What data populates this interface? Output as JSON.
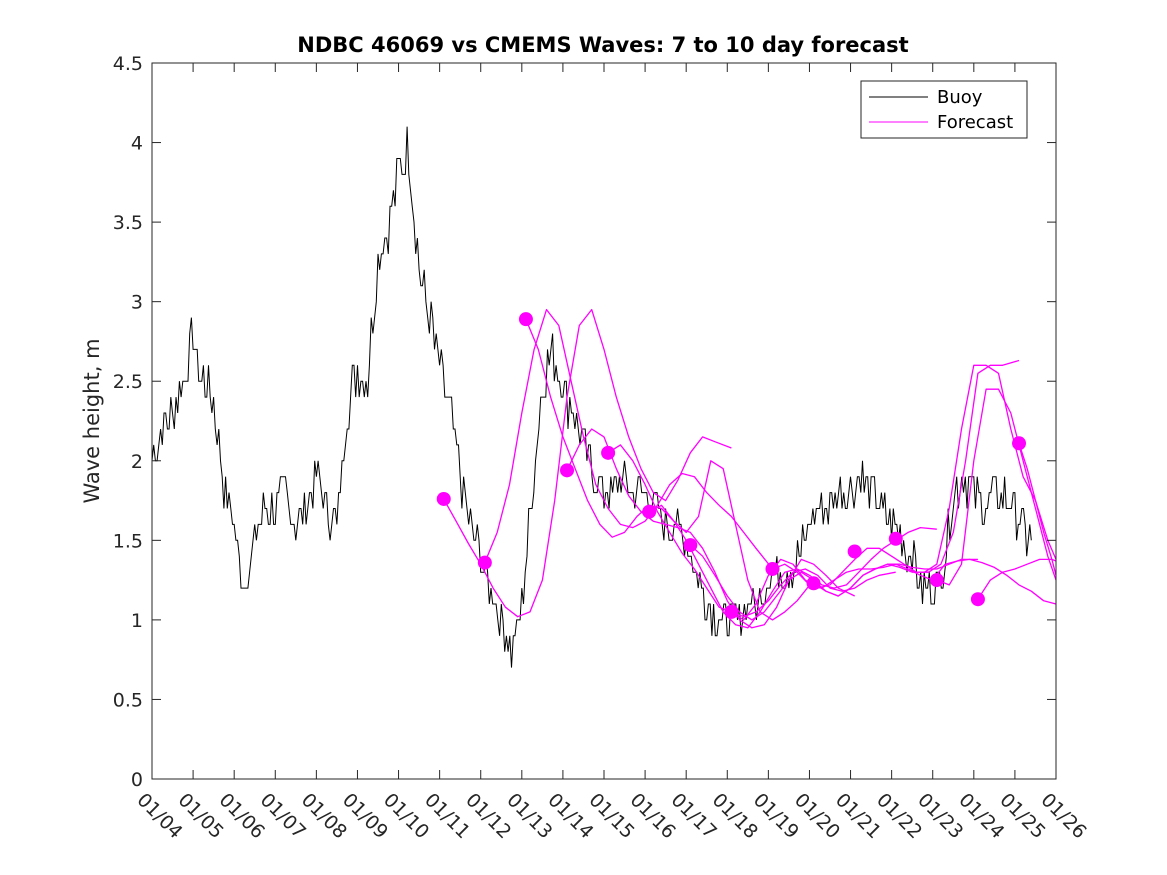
{
  "chart_data": {
    "type": "line",
    "title": "NDBC 46069 vs CMEMS Waves: 7 to 10 day forecast",
    "xlabel": "",
    "ylabel": "Wave height, m",
    "xlim": [
      0,
      22
    ],
    "ylim": [
      0,
      4.5
    ],
    "x_tick_labels": [
      "01/04",
      "01/05",
      "01/06",
      "01/07",
      "01/08",
      "01/09",
      "01/10",
      "01/11",
      "01/12",
      "01/13",
      "01/14",
      "01/15",
      "01/16",
      "01/17",
      "01/18",
      "01/19",
      "01/20",
      "01/21",
      "01/22",
      "01/23",
      "01/24",
      "01/25",
      "01/26"
    ],
    "y_tick_labels": [
      "0",
      "0.5",
      "1",
      "1.5",
      "2",
      "2.5",
      "3",
      "3.5",
      "4",
      "4.5"
    ],
    "legend": {
      "position": "top-right",
      "entries": [
        {
          "name": "Buoy",
          "color": "#000000"
        },
        {
          "name": "Forecast",
          "color": "#ff00ff"
        }
      ]
    },
    "colors": {
      "buoy": "#000000",
      "forecast": "#ff00ff",
      "axis": "#262626"
    },
    "buoy": {
      "name": "Buoy",
      "x": [
        0,
        0.25,
        0.5,
        0.75,
        1,
        1.1,
        1.25,
        1.5,
        1.75,
        2,
        2.25,
        2.5,
        2.75,
        3,
        3.25,
        3.5,
        3.75,
        4,
        4.25,
        4.5,
        4.75,
        5,
        5.25,
        5.5,
        5.75,
        6,
        6.25,
        6.5,
        6.75,
        7,
        7.25,
        7.5,
        7.75,
        8,
        8.25,
        8.5,
        8.75,
        9,
        9.25,
        9.5,
        9.75,
        10,
        10.25,
        10.5,
        10.75,
        11,
        11.25,
        11.5,
        11.75,
        12,
        12.25,
        12.5,
        12.75,
        13,
        13.25,
        13.5,
        13.75,
        14,
        14.25,
        14.5,
        14.75,
        15,
        15.25,
        15.5,
        15.75,
        16,
        16.25,
        16.5,
        16.75,
        17,
        17.25,
        17.5,
        17.75,
        18,
        18.25,
        18.5,
        18.75,
        19,
        19.25,
        19.5,
        19.75,
        20,
        20.25,
        20.5,
        20.75,
        21,
        21.25,
        21.4
      ],
      "y": [
        2.0,
        2.2,
        2.3,
        2.5,
        2.8,
        2.6,
        2.5,
        2.4,
        1.8,
        1.6,
        1.2,
        1.5,
        1.7,
        1.7,
        1.8,
        1.6,
        1.7,
        1.9,
        1.7,
        1.6,
        2.3,
        2.6,
        2.5,
        3.3,
        3.5,
        3.8,
        4.0,
        3.2,
        2.9,
        2.6,
        2.3,
        1.9,
        1.6,
        1.4,
        1.2,
        1.0,
        0.8,
        1.1,
        1.8,
        2.5,
        2.7,
        2.5,
        2.3,
        2.1,
        1.9,
        1.8,
        1.8,
        1.9,
        1.8,
        1.8,
        1.7,
        1.6,
        1.6,
        1.5,
        1.3,
        1.1,
        1.0,
        1.0,
        1.0,
        1.1,
        1.1,
        1.3,
        1.3,
        1.3,
        1.4,
        1.6,
        1.7,
        1.7,
        1.8,
        1.8,
        1.9,
        1.8,
        1.7,
        1.6,
        1.5,
        1.4,
        1.2,
        1.2,
        1.3,
        1.8,
        1.9,
        1.8,
        1.7,
        1.8,
        1.8,
        1.7,
        1.5,
        1.5
      ],
      "noise": 0.13
    },
    "forecast_runs": [
      {
        "x": [
          7.1,
          7.4,
          7.7,
          8.0,
          8.3,
          8.6,
          8.9,
          9.2,
          9.5,
          9.8,
          10.1,
          10.4,
          10.7,
          11.0,
          11.3,
          11.6,
          11.9,
          12.2,
          12.5,
          12.8,
          13.1,
          13.4,
          13.7,
          14.1
        ],
        "y": [
          1.76,
          1.62,
          1.48,
          1.35,
          1.2,
          1.08,
          1.02,
          1.05,
          1.25,
          1.75,
          2.4,
          2.85,
          2.95,
          2.7,
          2.4,
          2.15,
          1.95,
          1.8,
          1.75,
          1.88,
          2.05,
          2.15,
          2.12,
          2.08
        ]
      },
      {
        "x": [
          8.1,
          8.4,
          8.7,
          9.0,
          9.3,
          9.6,
          9.9,
          10.2,
          10.5,
          10.8,
          11.1,
          11.4,
          11.7,
          12.0,
          12.3,
          12.6,
          12.9,
          13.2,
          13.5,
          13.8,
          14.1,
          14.4,
          14.7,
          15.1
        ],
        "y": [
          1.36,
          1.55,
          1.85,
          2.3,
          2.7,
          2.95,
          2.85,
          2.5,
          2.15,
          1.85,
          1.7,
          1.6,
          1.58,
          1.62,
          1.72,
          1.85,
          1.92,
          1.9,
          1.8,
          1.72,
          1.65,
          1.55,
          1.45,
          1.32
        ]
      },
      {
        "x": [
          9.1,
          9.4,
          9.7,
          10.0,
          10.3,
          10.6,
          10.9,
          11.2,
          11.5,
          11.8,
          12.1,
          12.4,
          12.7,
          13.0,
          13.3,
          13.6,
          13.9,
          14.2,
          14.5,
          14.8,
          15.1,
          15.4,
          15.7,
          16.1
        ],
        "y": [
          2.89,
          2.7,
          2.4,
          2.15,
          1.95,
          1.75,
          1.6,
          1.52,
          1.55,
          1.65,
          1.72,
          1.7,
          1.62,
          1.55,
          1.65,
          2.0,
          1.95,
          1.6,
          1.25,
          1.05,
          1.0,
          1.05,
          1.12,
          1.25
        ]
      },
      {
        "x": [
          10.1,
          10.4,
          10.7,
          11.0,
          11.3,
          11.6,
          11.9,
          12.2,
          12.5,
          12.8,
          13.1,
          13.4,
          13.7,
          14.0,
          14.3,
          14.6,
          14.9,
          15.2,
          15.5,
          15.8,
          16.1,
          16.4,
          16.7,
          17.1
        ],
        "y": [
          1.94,
          2.1,
          2.2,
          2.15,
          1.95,
          1.78,
          1.68,
          1.62,
          1.6,
          1.58,
          1.55,
          1.45,
          1.3,
          1.12,
          1.0,
          0.95,
          0.97,
          1.08,
          1.25,
          1.38,
          1.35,
          1.28,
          1.2,
          1.15
        ]
      },
      {
        "x": [
          11.1,
          11.4,
          11.7,
          12.0,
          12.3,
          12.6,
          12.9,
          13.2,
          13.5,
          13.8,
          14.1,
          14.4,
          14.7,
          15.0,
          15.3,
          15.6,
          15.9,
          16.2,
          16.5,
          16.8,
          17.1,
          17.4,
          17.7,
          18.1
        ],
        "y": [
          2.05,
          2.1,
          2.0,
          1.85,
          1.68,
          1.55,
          1.42,
          1.32,
          1.2,
          1.08,
          1.05,
          1.02,
          1.05,
          1.12,
          1.22,
          1.3,
          1.32,
          1.28,
          1.2,
          1.18,
          1.2,
          1.25,
          1.28,
          1.3
        ]
      },
      {
        "x": [
          12.1,
          12.4,
          12.7,
          13.0,
          13.3,
          13.6,
          13.9,
          14.2,
          14.5,
          14.8,
          15.1,
          15.4,
          15.7,
          16.0,
          16.3,
          16.6,
          16.9,
          17.2,
          17.5,
          17.8,
          18.1,
          18.4,
          18.7,
          19.1
        ],
        "y": [
          1.68,
          1.72,
          1.62,
          1.5,
          1.35,
          1.2,
          1.05,
          0.97,
          0.95,
          1.05,
          1.18,
          1.3,
          1.32,
          1.28,
          1.22,
          1.2,
          1.22,
          1.3,
          1.38,
          1.45,
          1.5,
          1.55,
          1.58,
          1.57
        ]
      },
      {
        "x": [
          13.1,
          13.4,
          13.7,
          14.0,
          14.3,
          14.6,
          14.9,
          15.2,
          15.5,
          15.8,
          16.1,
          16.4,
          16.7,
          17.0,
          17.3,
          17.6,
          17.9,
          18.2,
          18.5,
          18.8,
          19.1,
          19.4,
          19.7,
          20.1
        ],
        "y": [
          1.47,
          1.4,
          1.28,
          1.15,
          1.05,
          1.0,
          1.05,
          1.15,
          1.25,
          1.3,
          1.25,
          1.18,
          1.15,
          1.2,
          1.28,
          1.32,
          1.35,
          1.35,
          1.33,
          1.32,
          1.32,
          1.35,
          1.38,
          1.38
        ]
      },
      {
        "x": [
          14.1,
          14.4,
          14.7,
          15.0,
          15.3,
          15.6,
          15.9,
          16.2,
          16.5,
          16.8,
          17.1,
          17.4,
          17.7,
          18.0,
          18.3,
          18.6,
          18.9,
          19.2,
          19.5,
          19.8,
          20.1,
          20.4,
          20.7,
          21.1
        ],
        "y": [
          1.05,
          1.0,
          1.1,
          1.28,
          1.38,
          1.35,
          1.25,
          1.2,
          1.22,
          1.3,
          1.38,
          1.45,
          1.45,
          1.4,
          1.35,
          1.3,
          1.3,
          1.35,
          1.55,
          2.0,
          2.55,
          2.6,
          2.6,
          2.63
        ]
      },
      {
        "x": [
          15.1,
          15.4,
          15.7,
          16.0,
          16.3,
          16.6,
          16.9,
          17.2,
          17.5,
          17.8,
          18.1,
          18.4,
          18.7,
          19.0,
          19.3,
          19.6,
          19.9,
          20.2,
          20.5,
          20.8,
          21.1,
          21.4,
          21.7,
          22.0
        ],
        "y": [
          1.32,
          1.35,
          1.3,
          1.22,
          1.2,
          1.25,
          1.3,
          1.32,
          1.32,
          1.33,
          1.35,
          1.32,
          1.28,
          1.25,
          1.35,
          1.37,
          1.38,
          1.36,
          1.33,
          1.28,
          1.22,
          1.18,
          1.12,
          1.1
        ]
      },
      {
        "x": [
          16.1,
          16.4,
          16.7,
          17.0,
          17.3,
          17.6,
          17.9,
          18.2,
          18.5,
          18.8,
          19.1,
          19.4,
          19.7,
          20.0,
          20.3,
          20.6,
          20.9,
          21.2,
          21.5,
          21.8,
          22.0
        ],
        "y": [
          1.23,
          1.18,
          1.15,
          1.2,
          1.28,
          1.32,
          1.35,
          1.33,
          1.3,
          1.3,
          1.35,
          1.7,
          2.2,
          2.6,
          2.6,
          2.55,
          2.2,
          1.9,
          1.75,
          1.5,
          1.38
        ]
      },
      {
        "x": [
          19.1,
          19.4,
          19.7,
          20.0,
          20.3,
          20.6,
          20.9,
          21.2,
          21.5,
          21.8,
          22.0
        ],
        "y": [
          1.25,
          1.22,
          1.35,
          2.0,
          2.45,
          2.45,
          2.3,
          2.0,
          1.7,
          1.4,
          1.25
        ]
      },
      {
        "x": [
          20.1,
          20.4,
          20.7,
          21.0,
          21.3,
          21.6,
          21.9,
          22.0
        ],
        "y": [
          1.13,
          1.25,
          1.3,
          1.32,
          1.35,
          1.38,
          1.38,
          1.37
        ]
      },
      {
        "x": [
          21.1,
          21.3,
          21.5,
          21.7,
          21.9,
          22.0
        ],
        "y": [
          2.11,
          1.95,
          1.75,
          1.55,
          1.38,
          1.28
        ]
      }
    ],
    "forecast_points": {
      "x": [
        7.1,
        8.1,
        9.1,
        10.1,
        11.1,
        12.1,
        13.1,
        14.1,
        15.1,
        16.1,
        17.1,
        18.1,
        19.1,
        20.1,
        21.1
      ],
      "y": [
        1.76,
        1.36,
        2.89,
        1.94,
        2.05,
        1.68,
        1.47,
        1.05,
        1.32,
        1.23,
        1.43,
        1.51,
        1.25,
        1.13,
        2.11
      ]
    }
  }
}
